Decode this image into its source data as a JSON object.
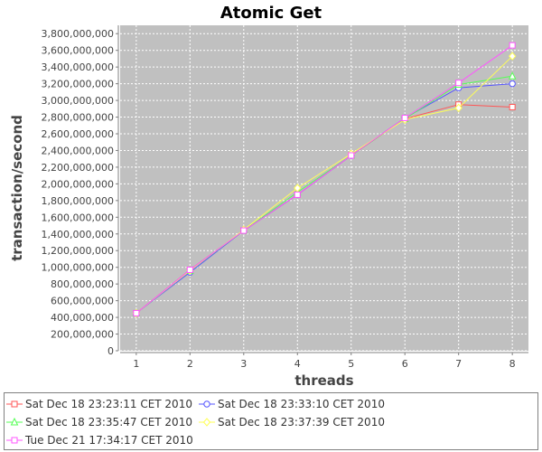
{
  "chart_data": {
    "type": "line",
    "title": "Atomic Get",
    "xlabel": "threads",
    "ylabel": "transaction/second",
    "x": [
      1,
      2,
      3,
      4,
      5,
      6,
      7,
      8
    ],
    "xlim": [
      0.7,
      8.3
    ],
    "ylim": [
      0,
      3900000000
    ],
    "y_ticks": [
      0,
      200000000,
      400000000,
      600000000,
      800000000,
      1000000000,
      1200000000,
      1400000000,
      1600000000,
      1800000000,
      2000000000,
      2200000000,
      2400000000,
      2600000000,
      2800000000,
      3000000000,
      3200000000,
      3400000000,
      3600000000,
      3800000000
    ],
    "grid": true,
    "legend_position": "bottom",
    "plot_background": "#c0c0c0",
    "series": [
      {
        "name": "Sat Dec 18 23:23:11 CET 2010",
        "color": "#ff5555",
        "marker": "square",
        "values": [
          450000000,
          970000000,
          1440000000,
          1870000000,
          2340000000,
          2780000000,
          2950000000,
          2920000000
        ]
      },
      {
        "name": "Sat Dec 18 23:33:10 CET 2010",
        "color": "#5555ff",
        "marker": "circle",
        "values": [
          450000000,
          940000000,
          1440000000,
          1870000000,
          2340000000,
          2790000000,
          3150000000,
          3200000000
        ]
      },
      {
        "name": "Sat Dec 18 23:35:47 CET 2010",
        "color": "#55ff55",
        "marker": "triangle",
        "values": [
          450000000,
          960000000,
          1440000000,
          1900000000,
          2340000000,
          2780000000,
          3190000000,
          3290000000
        ]
      },
      {
        "name": "Sat Dec 18 23:37:39 CET 2010",
        "color": "#ffff55",
        "marker": "diamond",
        "values": [
          450000000,
          960000000,
          1450000000,
          1950000000,
          2360000000,
          2770000000,
          2910000000,
          3530000000
        ]
      },
      {
        "name": "Tue Dec 21 17:34:17 CET 2010",
        "color": "#ff55ff",
        "marker": "square",
        "values": [
          450000000,
          970000000,
          1440000000,
          1870000000,
          2340000000,
          2790000000,
          3210000000,
          3660000000
        ]
      }
    ]
  }
}
